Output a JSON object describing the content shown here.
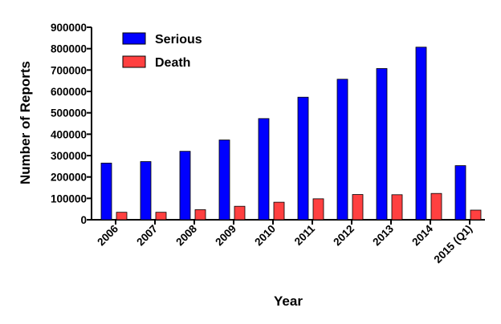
{
  "chart_data": {
    "type": "bar",
    "title": "",
    "xlabel": "Year",
    "ylabel": "Number of Reports",
    "ylim": [
      0,
      900000
    ],
    "yticks": [
      "0",
      "100000",
      "200000",
      "300000",
      "400000",
      "500000",
      "600000",
      "700000",
      "800000",
      "900000"
    ],
    "categories": [
      "2006",
      "2007",
      "2008",
      "2009",
      "2010",
      "2011",
      "2012",
      "2013",
      "2014",
      "2015 (Q1)"
    ],
    "series": [
      {
        "name": "Serious",
        "color": "#0000ff",
        "values": [
          265000,
          272000,
          320000,
          373000,
          473000,
          573000,
          657000,
          707000,
          807000,
          253000
        ]
      },
      {
        "name": "Death",
        "color": "#ff4040",
        "values": [
          35000,
          35000,
          47000,
          63000,
          82000,
          98000,
          118000,
          117000,
          123000,
          45000
        ]
      }
    ],
    "grid": false,
    "legend": "top-left"
  }
}
